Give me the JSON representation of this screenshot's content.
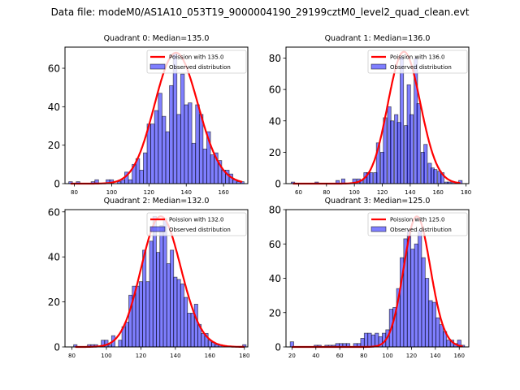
{
  "suptitle": "Data file: modeM0/AS1A10_053T19_9000004190_29199cztM0_level2_quad_clean.evt",
  "colors": {
    "bar_fill": "#0000ff",
    "bar_fill_opacity": 0.5,
    "bar_edge": "#000000",
    "curve": "#ff0000"
  },
  "chart_data": [
    {
      "type": "bar",
      "title": "Quadrant 0: Median=135.0",
      "legend": [
        "Poission with 135.0",
        "Observed distribution"
      ],
      "legend_position": "top-right",
      "xlim": [
        75,
        173
      ],
      "ylim": [
        0,
        71
      ],
      "xticks": [
        80,
        100,
        120,
        140,
        160
      ],
      "yticks": [
        0,
        20,
        40,
        60
      ],
      "bin_width": 2,
      "bins": [
        [
          78,
          1
        ],
        [
          80,
          0
        ],
        [
          82,
          1
        ],
        [
          84,
          0
        ],
        [
          86,
          0
        ],
        [
          88,
          0
        ],
        [
          90,
          1
        ],
        [
          92,
          2
        ],
        [
          94,
          0
        ],
        [
          96,
          0
        ],
        [
          98,
          2
        ],
        [
          100,
          2
        ],
        [
          102,
          0
        ],
        [
          104,
          1
        ],
        [
          106,
          2
        ],
        [
          108,
          6
        ],
        [
          110,
          2
        ],
        [
          112,
          10
        ],
        [
          114,
          13
        ],
        [
          116,
          7
        ],
        [
          118,
          16
        ],
        [
          120,
          31
        ],
        [
          122,
          31
        ],
        [
          124,
          38
        ],
        [
          126,
          47
        ],
        [
          128,
          35
        ],
        [
          130,
          27
        ],
        [
          132,
          51
        ],
        [
          134,
          68
        ],
        [
          136,
          36
        ],
        [
          138,
          57
        ],
        [
          140,
          41
        ],
        [
          142,
          42
        ],
        [
          144,
          21
        ],
        [
          146,
          41
        ],
        [
          148,
          36
        ],
        [
          150,
          18
        ],
        [
          152,
          27
        ],
        [
          154,
          15
        ],
        [
          156,
          16
        ],
        [
          158,
          12
        ],
        [
          160,
          7
        ],
        [
          162,
          7
        ],
        [
          164,
          5
        ],
        [
          166,
          2
        ],
        [
          168,
          1
        ],
        [
          170,
          1
        ]
      ],
      "poisson_mean": 135.0,
      "poisson_peak": 68
    },
    {
      "type": "bar",
      "title": "Quadrant 1: Median=136.0",
      "legend": [
        "Poission with 136.0",
        "Observed distribution"
      ],
      "legend_position": "top-right",
      "xlim": [
        51,
        182
      ],
      "ylim": [
        0,
        87
      ],
      "xticks": [
        60,
        80,
        100,
        120,
        140,
        160,
        180
      ],
      "yticks": [
        0,
        20,
        40,
        60,
        80
      ],
      "bin_width": 2.5,
      "bins": [
        [
          56,
          1
        ],
        [
          73,
          1
        ],
        [
          88,
          2
        ],
        [
          92,
          3
        ],
        [
          100,
          3
        ],
        [
          103,
          3
        ],
        [
          105,
          2
        ],
        [
          108,
          7
        ],
        [
          110,
          7
        ],
        [
          112,
          7
        ],
        [
          115,
          7
        ],
        [
          117,
          26
        ],
        [
          120,
          20
        ],
        [
          122,
          42
        ],
        [
          125,
          49
        ],
        [
          127,
          40
        ],
        [
          130,
          44
        ],
        [
          132,
          39
        ],
        [
          134,
          81
        ],
        [
          137,
          37
        ],
        [
          139,
          63
        ],
        [
          141,
          44
        ],
        [
          144,
          80
        ],
        [
          146,
          51
        ],
        [
          149,
          20
        ],
        [
          151,
          25
        ],
        [
          154,
          13
        ],
        [
          156,
          10
        ],
        [
          158,
          9
        ],
        [
          161,
          8
        ],
        [
          163,
          7
        ],
        [
          166,
          1
        ],
        [
          168,
          1
        ],
        [
          171,
          1
        ],
        [
          176,
          2
        ]
      ],
      "poisson_mean": 136.0,
      "poisson_peak": 84
    },
    {
      "type": "bar",
      "title": "Quadrant 2: Median=132.0",
      "legend": [
        "Poission with 132.0",
        "Observed distribution"
      ],
      "legend_position": "top-right",
      "xlim": [
        76,
        182
      ],
      "ylim": [
        0,
        61
      ],
      "xticks": [
        80,
        100,
        120,
        140,
        160,
        180
      ],
      "yticks": [
        0,
        20,
        40,
        60
      ],
      "bin_width": 2,
      "bins": [
        [
          82,
          1
        ],
        [
          90,
          1
        ],
        [
          92,
          1
        ],
        [
          94,
          1
        ],
        [
          98,
          3
        ],
        [
          100,
          3
        ],
        [
          102,
          1
        ],
        [
          104,
          5
        ],
        [
          108,
          3
        ],
        [
          110,
          9
        ],
        [
          112,
          11
        ],
        [
          114,
          23
        ],
        [
          116,
          27
        ],
        [
          118,
          27
        ],
        [
          120,
          29
        ],
        [
          122,
          43
        ],
        [
          124,
          29
        ],
        [
          126,
          47
        ],
        [
          128,
          58
        ],
        [
          130,
          42
        ],
        [
          132,
          54
        ],
        [
          134,
          57
        ],
        [
          136,
          37
        ],
        [
          138,
          43
        ],
        [
          140,
          31
        ],
        [
          142,
          30
        ],
        [
          144,
          28
        ],
        [
          146,
          22
        ],
        [
          148,
          15
        ],
        [
          150,
          15
        ],
        [
          152,
          19
        ],
        [
          154,
          10
        ],
        [
          156,
          6
        ],
        [
          158,
          6
        ],
        [
          160,
          3
        ],
        [
          162,
          2
        ],
        [
          164,
          1
        ],
        [
          166,
          1
        ],
        [
          180,
          1
        ]
      ],
      "poisson_mean": 132.0,
      "poisson_peak": 58
    },
    {
      "type": "bar",
      "title": "Quadrant 3: Median=125.0",
      "legend": [
        "Poission with 125.0",
        "Observed distribution"
      ],
      "legend_position": "top-right",
      "xlim": [
        15,
        168
      ],
      "ylim": [
        0,
        80
      ],
      "xticks": [
        20,
        40,
        60,
        80,
        100,
        120,
        140,
        160
      ],
      "yticks": [
        0,
        20,
        40,
        60,
        80
      ],
      "bin_width": 3,
      "bins": [
        [
          20,
          3
        ],
        [
          40,
          1
        ],
        [
          43,
          1
        ],
        [
          49,
          1
        ],
        [
          52,
          1
        ],
        [
          55,
          1
        ],
        [
          58,
          2
        ],
        [
          61,
          2
        ],
        [
          64,
          2
        ],
        [
          67,
          2
        ],
        [
          73,
          2
        ],
        [
          76,
          2
        ],
        [
          79,
          5
        ],
        [
          82,
          8
        ],
        [
          85,
          8
        ],
        [
          88,
          7
        ],
        [
          91,
          8
        ],
        [
          94,
          6
        ],
        [
          97,
          8
        ],
        [
          100,
          10
        ],
        [
          103,
          22
        ],
        [
          106,
          23
        ],
        [
          109,
          34
        ],
        [
          112,
          52
        ],
        [
          115,
          63
        ],
        [
          118,
          68
        ],
        [
          121,
          57
        ],
        [
          124,
          60
        ],
        [
          127,
          68
        ],
        [
          130,
          52
        ],
        [
          133,
          40
        ],
        [
          136,
          27
        ],
        [
          139,
          26
        ],
        [
          142,
          17
        ],
        [
          145,
          13
        ],
        [
          148,
          9
        ],
        [
          151,
          4
        ],
        [
          154,
          4
        ],
        [
          157,
          2
        ],
        [
          160,
          4
        ],
        [
          163,
          1
        ]
      ],
      "poisson_mean": 125.0,
      "poisson_peak": 76
    }
  ]
}
